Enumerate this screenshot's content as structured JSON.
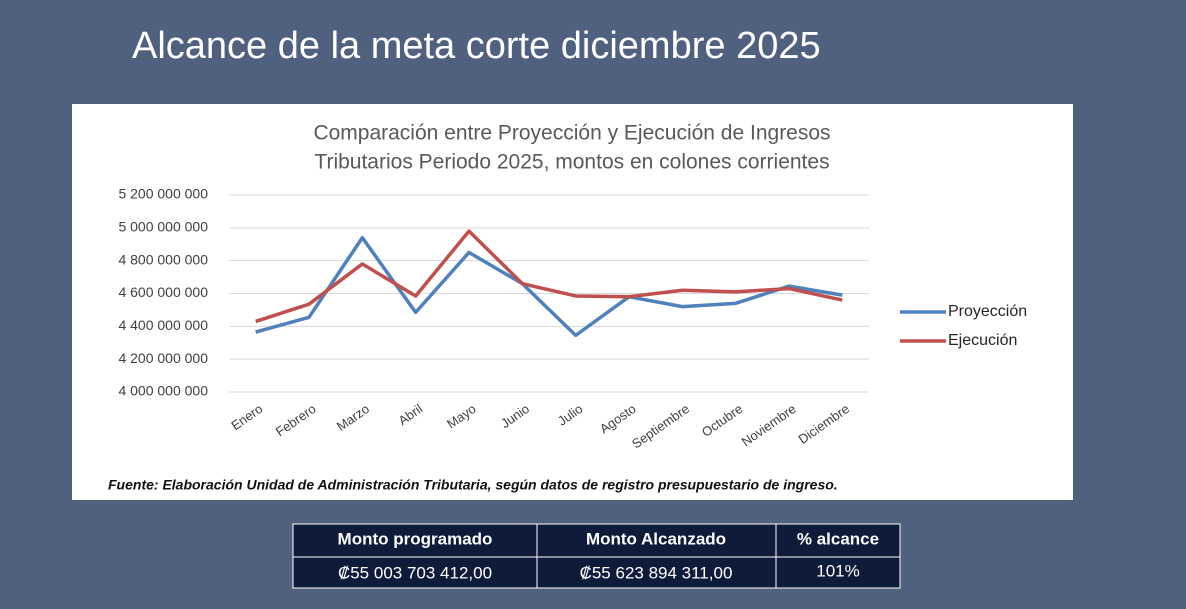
{
  "header": {
    "title": "Alcance de la meta corte diciembre 2025"
  },
  "chart_data": {
    "type": "line",
    "title": [
      "Comparación entre Proyección y Ejecución de Ingresos",
      "Tributarios Periodo 2025, montos en colones corrientes"
    ],
    "categories": [
      "Enero",
      "Febrero",
      "Marzo",
      "Abril",
      "Mayo",
      "Junio",
      "Julio",
      "Agosto",
      "Septiembre",
      "Octubre",
      "Noviembre",
      "Diciembre"
    ],
    "series": [
      {
        "name": "Proyección",
        "color": "#4f81bd",
        "values": [
          4365000000,
          4455000000,
          4940000000,
          4485000000,
          4850000000,
          4660000000,
          4345000000,
          4580000000,
          4520000000,
          4540000000,
          4645000000,
          4590000000
        ]
      },
      {
        "name": "Ejecución",
        "color": "#c0504d",
        "values": [
          4430000000,
          4535000000,
          4780000000,
          4585000000,
          4980000000,
          4660000000,
          4585000000,
          4580000000,
          4620000000,
          4610000000,
          4630000000,
          4560000000
        ]
      }
    ],
    "ylim": [
      4000000000,
      5200000000
    ],
    "yticks": [
      {
        "value": 4000000000,
        "label": "4 000 000 000"
      },
      {
        "value": 4200000000,
        "label": "4 200 000 000"
      },
      {
        "value": 4400000000,
        "label": "4 400 000 000"
      },
      {
        "value": 4600000000,
        "label": "4 600 000 000"
      },
      {
        "value": 4800000000,
        "label": "4 800 000 000"
      },
      {
        "value": 5000000000,
        "label": "5 000 000 000"
      },
      {
        "value": 5200000000,
        "label": "5 200 000 000"
      }
    ],
    "grid": true,
    "legend": "right",
    "source": "Fuente:  Elaboración Unidad de Administración Tributaria, según datos de registro presupuestario de ingreso."
  },
  "table": {
    "header": [
      "Monto programado",
      "Monto Alcanzado",
      "%  alcance"
    ],
    "rows": [
      [
        "₡55 003 703 412,00",
        "₡55 623 894 311,00",
        "101%"
      ]
    ]
  }
}
